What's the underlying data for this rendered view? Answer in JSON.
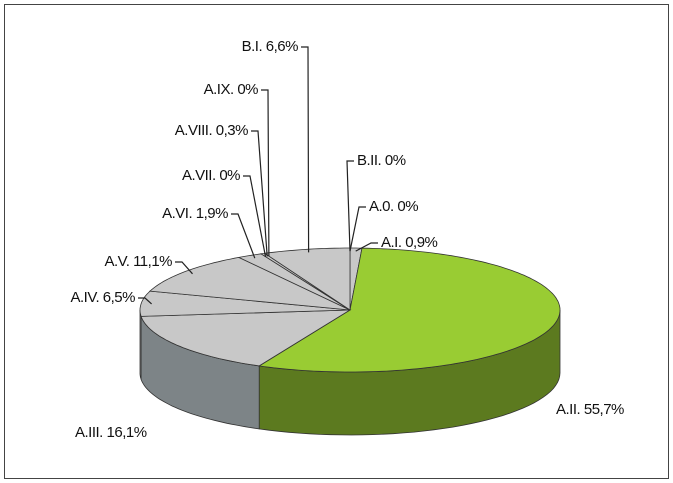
{
  "chart_data": {
    "type": "pie",
    "categories": [
      "A.0.",
      "A.I.",
      "A.II.",
      "A.III.",
      "A.IV.",
      "A.V.",
      "A.VI.",
      "A.VII.",
      "A.VIII.",
      "A.IX.",
      "B.I.",
      "B.II."
    ],
    "values": [
      0,
      0.9,
      55.7,
      16.1,
      6.5,
      11.1,
      1.9,
      0,
      0.3,
      0,
      6.6,
      0
    ],
    "value_labels": [
      "0%",
      "0,9%",
      "55,7%",
      "16,1%",
      "6,5%",
      "11,1%",
      "1,9%",
      "0%",
      "0,3%",
      "0%",
      "6,6%",
      "0%"
    ],
    "colors": [
      "#c8c8c8",
      "#c8c8c8",
      "#99cc33",
      "#c8c8c8",
      "#c8c8c8",
      "#c8c8c8",
      "#c8c8c8",
      "#c8c8c8",
      "#c8c8c8",
      "#c8c8c8",
      "#c8c8c8",
      "#c8c8c8"
    ]
  }
}
